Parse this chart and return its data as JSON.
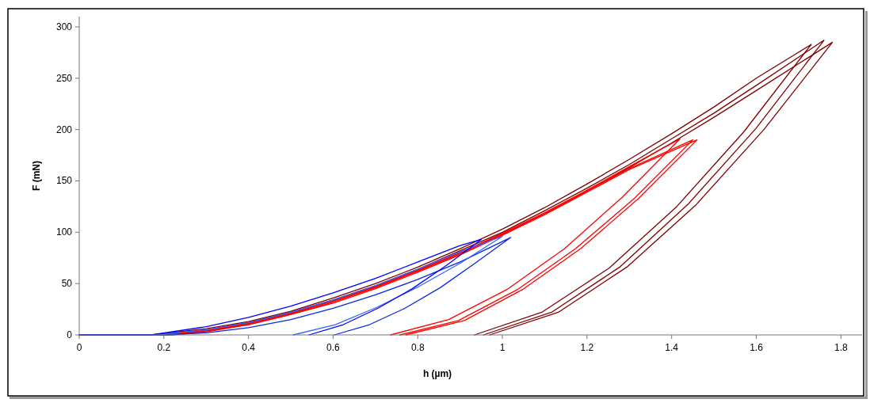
{
  "chart_data": {
    "type": "line",
    "xlabel": "h (µm)",
    "ylabel": "F (mN)",
    "xlim": [
      0,
      1.85
    ],
    "ylim": [
      0,
      310
    ],
    "xticks": [
      0,
      0.2,
      0.4,
      0.6,
      0.8,
      1,
      1.2,
      1.4,
      1.6,
      1.8
    ],
    "yticks": [
      0,
      50,
      100,
      150,
      200,
      250,
      300
    ],
    "grid": false,
    "series": [
      {
        "color": "#0000ff",
        "x": [
          0,
          0.17,
          0.3,
          0.4,
          0.5,
          0.6,
          0.7,
          0.8,
          0.9,
          0.95,
          0.869,
          0.787,
          0.706,
          0.624,
          0.543
        ],
        "values": [
          0,
          0,
          8,
          17,
          28,
          41,
          55,
          71,
          87,
          93,
          68,
          45,
          26,
          10,
          0
        ]
      },
      {
        "color": "#3366ff",
        "x": [
          0,
          0.18,
          0.3,
          0.4,
          0.5,
          0.6,
          0.7,
          0.8,
          0.9,
          1.0,
          0.901,
          0.802,
          0.704,
          0.605,
          0.506
        ],
        "values": [
          0,
          0,
          5,
          12,
          22,
          34,
          48,
          64,
          81,
          96,
          70,
          47,
          27,
          10,
          0
        ]
      },
      {
        "color": "#0a28e6",
        "x": [
          0,
          0.2,
          0.3,
          0.4,
          0.5,
          0.6,
          0.7,
          0.8,
          0.9,
          1.02,
          0.936,
          0.853,
          0.77,
          0.686,
          0.603
        ],
        "values": [
          0,
          0,
          2,
          7,
          15,
          26,
          39,
          54,
          71,
          95,
          70,
          46,
          26,
          10,
          0
        ]
      },
      {
        "color": "#ff0000",
        "x": [
          0,
          0.2,
          0.3,
          0.4,
          0.5,
          0.6,
          0.7,
          0.8,
          0.9,
          1.0,
          1.1,
          1.2,
          1.3,
          1.42,
          1.283,
          1.147,
          1.01,
          0.873,
          0.736
        ],
        "values": [
          0,
          0,
          4,
          11,
          21,
          33,
          47,
          63,
          80,
          99,
          119,
          141,
          164,
          191,
          134,
          84,
          44,
          15,
          0
        ]
      },
      {
        "color": "#ff0000",
        "x": [
          0,
          0.21,
          0.3,
          0.4,
          0.5,
          0.6,
          0.7,
          0.8,
          0.9,
          1.0,
          1.1,
          1.2,
          1.3,
          1.45,
          1.312,
          1.173,
          1.035,
          0.896,
          0.758
        ],
        "values": [
          0,
          0,
          4,
          10,
          20,
          32,
          46,
          62,
          79,
          98,
          118,
          140,
          162,
          190,
          133,
          84,
          44,
          14,
          0
        ]
      },
      {
        "color": "#ff0000",
        "x": [
          0,
          0.22,
          0.3,
          0.4,
          0.5,
          0.6,
          0.7,
          0.8,
          0.9,
          1.0,
          1.1,
          1.2,
          1.3,
          1.46,
          1.322,
          1.185,
          1.047,
          0.91,
          0.772
        ],
        "values": [
          0,
          0,
          3,
          10,
          20,
          31,
          45,
          61,
          78,
          97,
          117,
          139,
          161,
          190,
          133,
          84,
          44,
          14,
          0
        ]
      },
      {
        "color": "#800000",
        "x": [
          0,
          0.17,
          0.3,
          0.4,
          0.5,
          0.6,
          0.7,
          0.8,
          0.9,
          1.0,
          1.1,
          1.2,
          1.3,
          1.4,
          1.5,
          1.6,
          1.73,
          1.571,
          1.412,
          1.252,
          1.093,
          0.934
        ],
        "values": [
          0,
          0,
          6,
          13,
          23,
          36,
          50,
          66,
          84,
          103,
          124,
          147,
          171,
          196,
          222,
          250,
          283,
          198,
          125,
          65,
          22,
          0
        ]
      },
      {
        "color": "#800000",
        "x": [
          0,
          0.18,
          0.3,
          0.4,
          0.5,
          0.6,
          0.7,
          0.8,
          0.9,
          1.0,
          1.1,
          1.2,
          1.3,
          1.4,
          1.5,
          1.6,
          1.76,
          1.599,
          1.438,
          1.277,
          1.116,
          0.955
        ],
        "values": [
          0,
          0,
          5,
          12,
          22,
          34,
          48,
          64,
          82,
          100,
          121,
          143,
          166,
          191,
          216,
          243,
          287,
          201,
          127,
          66,
          22,
          0
        ]
      },
      {
        "color": "#800000",
        "x": [
          0,
          0.2,
          0.3,
          0.4,
          0.5,
          0.6,
          0.7,
          0.8,
          0.9,
          1.0,
          1.1,
          1.2,
          1.3,
          1.4,
          1.5,
          1.6,
          1.78,
          1.618,
          1.456,
          1.294,
          1.132,
          0.97
        ],
        "values": [
          0,
          0,
          4,
          11,
          21,
          33,
          47,
          63,
          80,
          98,
          118,
          140,
          163,
          187,
          212,
          238,
          285,
          200,
          126,
          66,
          22,
          0
        ]
      }
    ]
  }
}
